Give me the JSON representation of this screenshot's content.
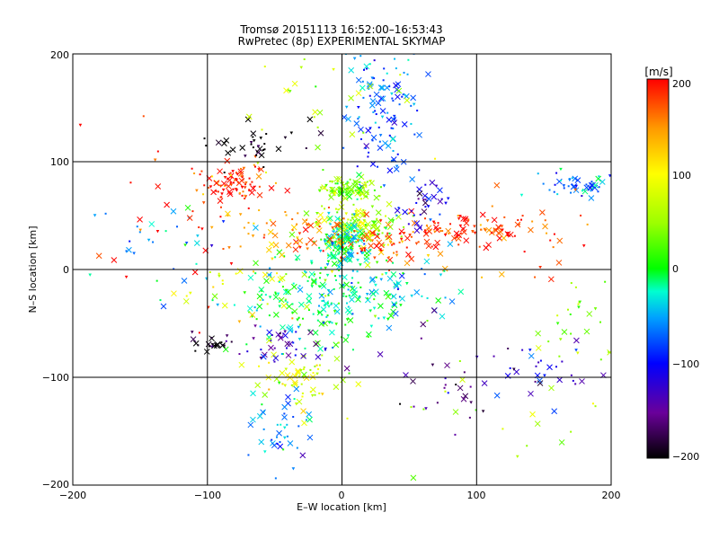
{
  "chart_data": {
    "type": "scatter",
    "title": "Tromsø 20151113 16:52:00–16:53:43",
    "subtitle": "RwPretec (8p) EXPERIMENTAL SKYMAP",
    "xlabel": "E–W location [km]",
    "ylabel": "N–S location [km]",
    "xlim": [
      -200,
      200
    ],
    "ylim": [
      -200,
      200
    ],
    "xticks": [
      "−200",
      "−100",
      "0",
      "100",
      "200"
    ],
    "yticks": [
      "200",
      "100",
      "0",
      "−100",
      "−200"
    ],
    "grid": true,
    "colorbar": {
      "label": "[m/s]",
      "range": [
        -200,
        200
      ],
      "ticks": [
        "200",
        "100",
        "0",
        "−100",
        "−200"
      ]
    },
    "clusters": [
      {
        "x": 30,
        "y": 150,
        "sx": 15,
        "sy": 30,
        "n": 120,
        "v": -70
      },
      {
        "x": -80,
        "y": 80,
        "sx": 15,
        "sy": 8,
        "n": 90,
        "v": 190
      },
      {
        "x": -65,
        "y": 115,
        "sx": 18,
        "sy": 10,
        "n": 35,
        "v": -200
      },
      {
        "x": 5,
        "y": 75,
        "sx": 12,
        "sy": 5,
        "n": 110,
        "v": 40
      },
      {
        "x": 10,
        "y": 40,
        "sx": 15,
        "sy": 10,
        "n": 130,
        "v": 60
      },
      {
        "x": 0,
        "y": 25,
        "sx": 8,
        "sy": 10,
        "n": 120,
        "v": -20
      },
      {
        "x": 30,
        "y": 25,
        "sx": 25,
        "sy": 10,
        "n": 90,
        "v": 180
      },
      {
        "x": 95,
        "y": 35,
        "sx": 22,
        "sy": 8,
        "n": 70,
        "v": 190
      },
      {
        "x": 60,
        "y": 60,
        "sx": 10,
        "sy": 10,
        "n": 35,
        "v": -120
      },
      {
        "x": 180,
        "y": 78,
        "sx": 14,
        "sy": 6,
        "n": 45,
        "v": -60
      },
      {
        "x": -15,
        "y": -30,
        "sx": 30,
        "sy": 25,
        "n": 210,
        "v": -10
      },
      {
        "x": 30,
        "y": -20,
        "sx": 25,
        "sy": 15,
        "n": 60,
        "v": -40
      },
      {
        "x": -30,
        "y": -100,
        "sx": 15,
        "sy": 15,
        "n": 60,
        "v": 80
      },
      {
        "x": -50,
        "y": -150,
        "sx": 15,
        "sy": 20,
        "n": 45,
        "v": -50
      },
      {
        "x": -100,
        "y": -68,
        "sx": 10,
        "sy": 5,
        "n": 25,
        "v": -200
      },
      {
        "x": -45,
        "y": -70,
        "sx": 15,
        "sy": 8,
        "n": 35,
        "v": -140
      },
      {
        "x": -35,
        "y": 35,
        "sx": 25,
        "sy": 12,
        "n": 55,
        "v": 150
      },
      {
        "x": 145,
        "y": -95,
        "sx": 20,
        "sy": 12,
        "n": 30,
        "v": -110
      },
      {
        "x": 175,
        "y": -40,
        "sx": 15,
        "sy": 20,
        "n": 25,
        "v": 40
      },
      {
        "x": 75,
        "y": -100,
        "sx": 30,
        "sy": 30,
        "n": 30,
        "v": -160
      },
      {
        "x": 140,
        "y": 30,
        "sx": 25,
        "sy": 25,
        "n": 30,
        "v": 170
      },
      {
        "x": -140,
        "y": 20,
        "sx": 30,
        "sy": 30,
        "n": 30,
        "v": -50
      },
      {
        "x": -120,
        "y": 50,
        "sx": 40,
        "sy": 40,
        "n": 30,
        "v": 190
      },
      {
        "x": 120,
        "y": -140,
        "sx": 40,
        "sy": 30,
        "n": 20,
        "v": 60
      },
      {
        "x": -80,
        "y": -20,
        "sx": 30,
        "sy": 20,
        "n": 30,
        "v": 100
      },
      {
        "x": 0,
        "y": 150,
        "sx": 40,
        "sy": 40,
        "n": 30,
        "v": 60
      }
    ]
  }
}
